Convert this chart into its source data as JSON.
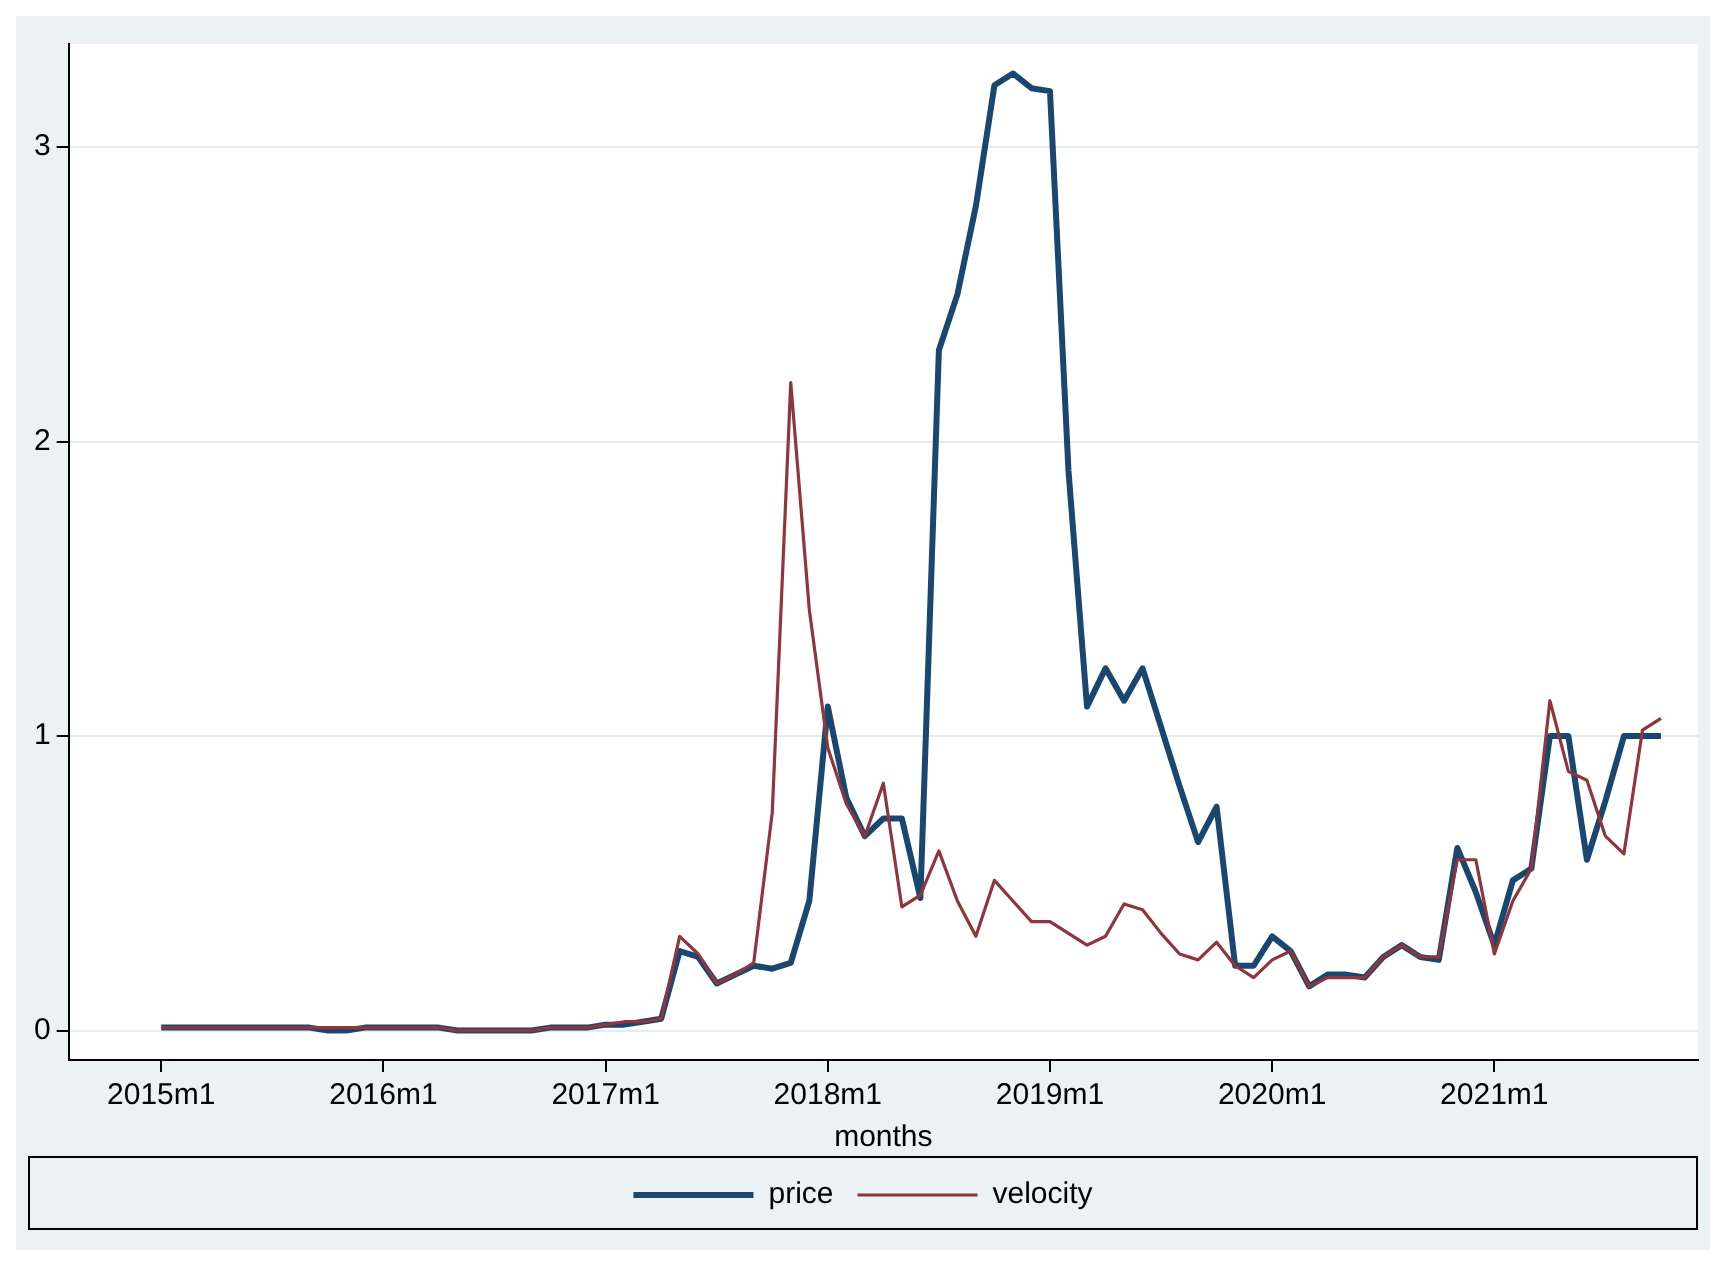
{
  "chart_data": {
    "type": "line",
    "xlabel": "months",
    "x": [
      "2015-01",
      "2015-02",
      "2015-03",
      "2015-04",
      "2015-05",
      "2015-06",
      "2015-07",
      "2015-08",
      "2015-09",
      "2015-10",
      "2015-11",
      "2015-12",
      "2016-01",
      "2016-02",
      "2016-03",
      "2016-04",
      "2016-05",
      "2016-06",
      "2016-07",
      "2016-08",
      "2016-09",
      "2016-10",
      "2016-11",
      "2016-12",
      "2017-01",
      "2017-02",
      "2017-03",
      "2017-04",
      "2017-05",
      "2017-06",
      "2017-07",
      "2017-08",
      "2017-09",
      "2017-10",
      "2017-11",
      "2017-12",
      "2018-01",
      "2018-02",
      "2018-03",
      "2018-04",
      "2018-05",
      "2018-06",
      "2018-07",
      "2018-08",
      "2018-09",
      "2018-10",
      "2018-11",
      "2018-12",
      "2019-01",
      "2019-02",
      "2019-03",
      "2019-04",
      "2019-05",
      "2019-06",
      "2019-07",
      "2019-08",
      "2019-09",
      "2019-10",
      "2019-11",
      "2019-12",
      "2020-01",
      "2020-02",
      "2020-03",
      "2020-04",
      "2020-05",
      "2020-06",
      "2020-07",
      "2020-08",
      "2020-09",
      "2020-10",
      "2020-11",
      "2020-12",
      "2021-01",
      "2021-02",
      "2021-03",
      "2021-04",
      "2021-05",
      "2021-06",
      "2021-07",
      "2021-08",
      "2021-09",
      "2021-10"
    ],
    "series": [
      {
        "name": "price",
        "color": "#1a476f",
        "values": [
          0.01,
          0.01,
          0.01,
          0.01,
          0.01,
          0.01,
          0.01,
          0.01,
          0.01,
          0.0,
          0.0,
          0.01,
          0.01,
          0.01,
          0.01,
          0.01,
          0.0,
          0.0,
          0.0,
          0.0,
          0.0,
          0.01,
          0.01,
          0.01,
          0.02,
          0.02,
          0.03,
          0.04,
          0.27,
          0.25,
          0.16,
          0.19,
          0.22,
          0.21,
          0.23,
          0.44,
          1.1,
          0.79,
          0.66,
          0.72,
          0.72,
          0.45,
          2.31,
          2.5,
          2.8,
          3.21,
          3.25,
          3.2,
          3.19,
          1.9,
          1.1,
          1.23,
          1.12,
          1.23,
          1.03,
          0.83,
          0.64,
          0.76,
          0.22,
          0.22,
          0.32,
          0.27,
          0.15,
          0.19,
          0.19,
          0.18,
          0.25,
          0.29,
          0.25,
          0.24,
          0.62,
          0.47,
          0.29,
          0.51,
          0.55,
          1.0,
          1.0,
          0.58,
          0.78,
          1.0,
          1.0,
          1.0
        ]
      },
      {
        "name": "velocity",
        "color": "#90353b",
        "values": [
          0.01,
          0.01,
          0.01,
          0.01,
          0.01,
          0.01,
          0.01,
          0.01,
          0.01,
          0.01,
          0.01,
          0.01,
          0.01,
          0.01,
          0.01,
          0.01,
          0.0,
          0.0,
          0.0,
          0.0,
          0.0,
          0.01,
          0.01,
          0.01,
          0.02,
          0.03,
          0.03,
          0.04,
          0.32,
          0.26,
          0.16,
          0.19,
          0.23,
          0.74,
          2.2,
          1.43,
          0.96,
          0.77,
          0.66,
          0.84,
          0.42,
          0.46,
          0.61,
          0.44,
          0.32,
          0.51,
          0.44,
          0.37,
          0.37,
          0.33,
          0.29,
          0.32,
          0.43,
          0.41,
          0.33,
          0.26,
          0.24,
          0.3,
          0.22,
          0.18,
          0.24,
          0.27,
          0.15,
          0.18,
          0.18,
          0.18,
          0.25,
          0.29,
          0.25,
          0.25,
          0.58,
          0.58,
          0.26,
          0.44,
          0.55,
          1.12,
          0.88,
          0.85,
          0.66,
          0.6,
          1.02,
          1.06
        ]
      }
    ],
    "xlim": [
      "2014-08",
      "2021-12"
    ],
    "xticks": [
      {
        "value": "2015-01",
        "label": "2015m1"
      },
      {
        "value": "2016-01",
        "label": "2016m1"
      },
      {
        "value": "2017-01",
        "label": "2017m1"
      },
      {
        "value": "2018-01",
        "label": "2018m1"
      },
      {
        "value": "2019-01",
        "label": "2019m1"
      },
      {
        "value": "2020-01",
        "label": "2020m1"
      },
      {
        "value": "2021-01",
        "label": "2021m1"
      }
    ],
    "ylim": [
      -0.1,
      3.35
    ],
    "yticks": [
      0,
      1,
      2,
      3
    ],
    "grid": "y",
    "legend": "bottom",
    "marker": "none",
    "line_style": "solid"
  }
}
